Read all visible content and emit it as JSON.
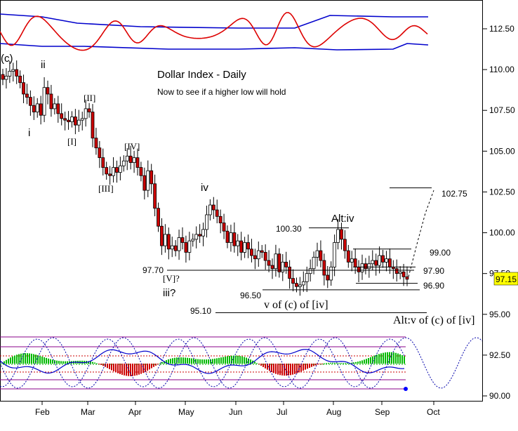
{
  "chart_data": {
    "type": "candlestick",
    "title": "Dollar Index - Daily",
    "subtitle": "Now to see if a higher low will hold",
    "y_ticks": [
      112.5,
      110.0,
      107.5,
      105.0,
      102.5,
      100.0,
      97.5,
      95.0,
      92.5,
      90.0
    ],
    "y_tick_labels": [
      "112.50",
      "110.00",
      "107.50",
      "105.00",
      "102.50",
      "100.00",
      "97.50",
      "95.00",
      "92.50",
      "90.00"
    ],
    "x_ticks": [
      "Feb",
      "Mar",
      "Apr",
      "May",
      "Jun",
      "Jul",
      "Aug",
      "Sep",
      "Oct"
    ],
    "last_price": "97.15",
    "ylim": [
      89.8,
      114.6
    ],
    "close_series": [
      109.4,
      109.6,
      109.9,
      110.0,
      109.6,
      109.2,
      108.5,
      108.3,
      107.8,
      107.4,
      107.9,
      107.2,
      108.9,
      108.5,
      107.6,
      107.9,
      107.3,
      107.0,
      106.9,
      106.8,
      107.1,
      106.6,
      106.9,
      107.0,
      107.6,
      107.4,
      105.8,
      105.2,
      104.6,
      104.0,
      103.6,
      103.5,
      104.0,
      103.7,
      104.1,
      104.4,
      104.7,
      104.3,
      104.6,
      104.0,
      103.5,
      102.6,
      103.8,
      103.0,
      101.5,
      100.4,
      99.2,
      99.9,
      99.0,
      99.2,
      98.9,
      99.7,
      99.4,
      98.8,
      99.5,
      99.6,
      99.9,
      99.8,
      100.2,
      101.1,
      101.7,
      101.4,
      101.0,
      100.6,
      100.1,
      99.4,
      100.0,
      99.2,
      99.5,
      98.8,
      99.4,
      99.0,
      98.6,
      98.4,
      98.9,
      98.8,
      98.3,
      98.0,
      97.8,
      98.7,
      97.6,
      98.2,
      97.9,
      97.2,
      96.9,
      96.7,
      96.8,
      97.0,
      97.5,
      97.8,
      98.5,
      98.9,
      98.3,
      97.4,
      97.1,
      97.9,
      99.4,
      100.2,
      99.6,
      98.9,
      98.2,
      98.4,
      97.9,
      97.6,
      98.1,
      97.8,
      98.1,
      98.3,
      98.0,
      98.6,
      98.2,
      98.4,
      97.9,
      97.8,
      97.5,
      97.6,
      97.3,
      97.15
    ],
    "cycle_projection": [
      97.3,
      99.3,
      101.2,
      102.6
    ],
    "levels": [
      {
        "value": 102.75,
        "label": "102.75"
      },
      {
        "value": 100.3,
        "label": "100.30"
      },
      {
        "value": 99.0,
        "label": "99.00"
      },
      {
        "value": 97.9,
        "label": "97.90"
      },
      {
        "value": 97.7,
        "label": "97.70"
      },
      {
        "value": 96.9,
        "label": "96.90"
      },
      {
        "value": 96.5,
        "label": "96.50"
      },
      {
        "value": 95.1,
        "label": "95.10"
      }
    ],
    "wave_labels": [
      "(c)",
      "ii",
      "i",
      "[II]",
      "[I]",
      "[IV]",
      "[III]",
      "iv",
      "[V]?",
      "iii?",
      "Alt:iv",
      "v of (c) of [iv]",
      "Alt:v of (c) of [iv]"
    ],
    "colors": {
      "candle_up": "#ffffff",
      "candle_down": "#cc0000",
      "oscillator_red": "#dd0000",
      "oscillator_blue": "#0000cc",
      "histogram_up": "#00bb00",
      "histogram_down": "#cc0000",
      "cycle": "#0000aa"
    }
  }
}
